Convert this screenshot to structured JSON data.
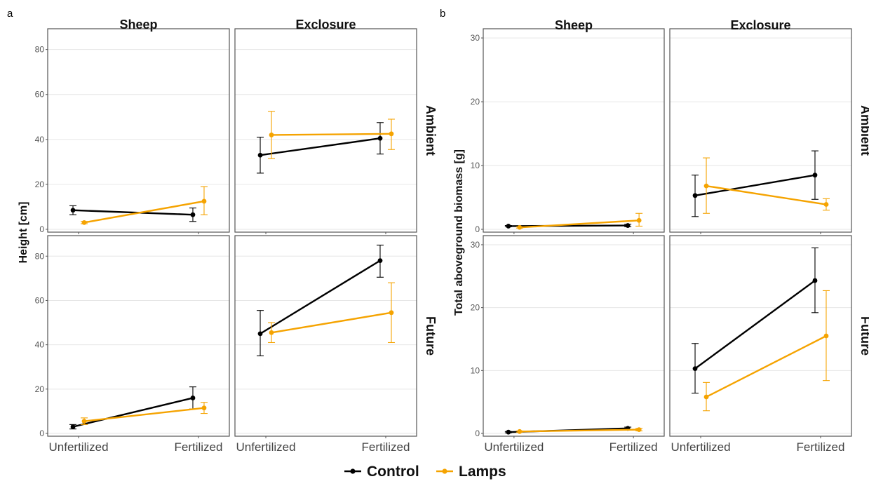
{
  "figure": {
    "legend": [
      {
        "label": "Control",
        "color": "#000000"
      },
      {
        "label": "Lamps",
        "color": "#f5a300"
      }
    ]
  },
  "chart_data": [
    {
      "panel_label": "a",
      "type": "line",
      "ylabel": "Height [cm]",
      "ylim": [
        0,
        88
      ],
      "yticks": [
        0,
        20,
        40,
        60,
        80
      ],
      "categories": [
        "Unfertilized",
        "Fertilized"
      ],
      "columns": [
        "Sheep",
        "Exclosure"
      ],
      "rows": [
        "Ambient",
        "Future"
      ],
      "grid": true,
      "legend_position": "bottom",
      "facets": [
        {
          "col": 0,
          "row": 0,
          "series": [
            {
              "name": "Control",
              "values": [
                8.5,
                6.5
              ],
              "err_low": [
                6.5,
                3.5
              ],
              "err_high": [
                10.5,
                9.5
              ]
            },
            {
              "name": "Lamps",
              "values": [
                3.0,
                12.5
              ],
              "err_low": [
                2.5,
                6.5
              ],
              "err_high": [
                3.5,
                19.0
              ]
            }
          ]
        },
        {
          "col": 1,
          "row": 0,
          "series": [
            {
              "name": "Control",
              "values": [
                33.0,
                40.5
              ],
              "err_low": [
                25.0,
                33.5
              ],
              "err_high": [
                41.0,
                47.5
              ]
            },
            {
              "name": "Lamps",
              "values": [
                42.0,
                42.5
              ],
              "err_low": [
                31.5,
                35.5
              ],
              "err_high": [
                52.5,
                49.0
              ]
            }
          ]
        },
        {
          "col": 0,
          "row": 1,
          "series": [
            {
              "name": "Control",
              "values": [
                3.0,
                16.0
              ],
              "err_low": [
                2.0,
                11.0
              ],
              "err_high": [
                4.0,
                21.0
              ]
            },
            {
              "name": "Lamps",
              "values": [
                5.5,
                11.5
              ],
              "err_low": [
                4.0,
                9.0
              ],
              "err_high": [
                7.0,
                14.0
              ]
            }
          ]
        },
        {
          "col": 1,
          "row": 1,
          "series": [
            {
              "name": "Control",
              "values": [
                45.0,
                78.0
              ],
              "err_low": [
                35.0,
                70.5
              ],
              "err_high": [
                55.5,
                85.0
              ]
            },
            {
              "name": "Lamps",
              "values": [
                45.5,
                54.5
              ],
              "err_low": [
                41.0,
                41.0
              ],
              "err_high": [
                50.0,
                68.0
              ]
            }
          ]
        }
      ]
    },
    {
      "panel_label": "b",
      "type": "line",
      "ylabel": "Total aboveground biomass [g]",
      "ylim": [
        0,
        31
      ],
      "yticks": [
        0,
        10,
        20,
        30
      ],
      "categories": [
        "Unfertilized",
        "Fertilized"
      ],
      "columns": [
        "Sheep",
        "Exclosure"
      ],
      "rows": [
        "Ambient",
        "Future"
      ],
      "grid": true,
      "legend_position": "bottom",
      "facets": [
        {
          "col": 0,
          "row": 0,
          "series": [
            {
              "name": "Control",
              "values": [
                0.5,
                0.6
              ],
              "err_low": [
                0.4,
                0.4
              ],
              "err_high": [
                0.6,
                0.8
              ]
            },
            {
              "name": "Lamps",
              "values": [
                0.3,
                1.4
              ],
              "err_low": [
                0.2,
                0.5
              ],
              "err_high": [
                0.4,
                2.5
              ]
            }
          ]
        },
        {
          "col": 1,
          "row": 0,
          "series": [
            {
              "name": "Control",
              "values": [
                5.3,
                8.5
              ],
              "err_low": [
                2.0,
                4.7
              ],
              "err_high": [
                8.5,
                12.3
              ]
            },
            {
              "name": "Lamps",
              "values": [
                6.8,
                3.9
              ],
              "err_low": [
                2.5,
                3.0
              ],
              "err_high": [
                11.2,
                4.8
              ]
            }
          ]
        },
        {
          "col": 0,
          "row": 1,
          "series": [
            {
              "name": "Control",
              "values": [
                0.2,
                0.8
              ],
              "err_low": [
                0.1,
                0.6
              ],
              "err_high": [
                0.3,
                1.0
              ]
            },
            {
              "name": "Lamps",
              "values": [
                0.3,
                0.6
              ],
              "err_low": [
                0.2,
                0.4
              ],
              "err_high": [
                0.4,
                0.8
              ]
            }
          ]
        },
        {
          "col": 1,
          "row": 1,
          "series": [
            {
              "name": "Control",
              "values": [
                10.3,
                24.3
              ],
              "err_low": [
                6.4,
                19.2
              ],
              "err_high": [
                14.3,
                29.5
              ]
            },
            {
              "name": "Lamps",
              "values": [
                5.8,
                15.5
              ],
              "err_low": [
                3.6,
                8.4
              ],
              "err_high": [
                8.1,
                22.7
              ]
            }
          ]
        }
      ]
    }
  ]
}
